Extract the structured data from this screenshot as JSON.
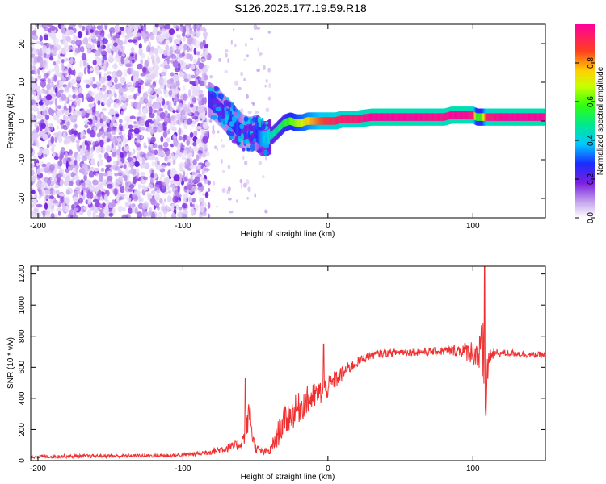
{
  "title": "S126.2025.177.19.59.R18",
  "chart_data": [
    {
      "type": "heatmap",
      "xlabel": "Height of straight line (km)",
      "ylabel": "Frequency (Hz)",
      "xlim": [
        -205,
        150
      ],
      "ylim": [
        -25,
        25
      ],
      "xticks": [
        -200,
        -100,
        0,
        100
      ],
      "yticks": [
        -20,
        -10,
        0,
        10,
        20
      ],
      "colorbar": {
        "label": "Normalized spectral amplitude",
        "range": [
          0,
          1
        ],
        "ticks": [
          0.0,
          0.2,
          0.4,
          0.6,
          0.8
        ],
        "tick_labels": [
          "0.0",
          "0.2",
          "0.4",
          "0.6",
          "0.8"
        ]
      },
      "noise_region_x": [
        -205,
        -82
      ],
      "ridge": {
        "x": [
          -82,
          -78,
          -74,
          -70,
          -66,
          -62,
          -58,
          -54,
          -50,
          -46,
          -42,
          -38,
          -34,
          -30,
          -26,
          -22,
          -18,
          -14,
          -10,
          -5,
          0,
          5,
          10,
          15,
          20,
          30,
          40,
          50,
          60,
          70,
          80,
          85,
          90,
          95,
          100,
          103,
          106,
          110,
          120,
          130,
          140,
          150
        ],
        "freq": [
          5.5,
          4.5,
          3,
          1.5,
          0,
          -2,
          -3,
          -3.5,
          -3,
          -4.5,
          -4.5,
          -3.5,
          -2,
          -0.5,
          0,
          -0.5,
          -0.5,
          0,
          0,
          0,
          0,
          0,
          0.5,
          0.5,
          0.5,
          1,
          1,
          1,
          1,
          1,
          1,
          1.5,
          1.5,
          1.5,
          1.5,
          1,
          1,
          1,
          1,
          1,
          1,
          1
        ],
        "amplitude": [
          0.25,
          0.2,
          0.2,
          0.25,
          0.25,
          0.3,
          0.2,
          0.2,
          0.25,
          0.35,
          0.4,
          0.45,
          0.5,
          0.55,
          0.6,
          0.65,
          0.7,
          0.75,
          0.8,
          0.85,
          0.9,
          0.92,
          0.95,
          0.95,
          0.95,
          1,
          1,
          1,
          1,
          0.98,
          0.98,
          1,
          1,
          1,
          0.95,
          0.55,
          0.6,
          0.95,
          1,
          1,
          1,
          1
        ]
      }
    },
    {
      "type": "line",
      "xlabel": "Height of straight line (km)",
      "ylabel": "SNR (10 * v/v)",
      "xlim": [
        -205,
        150
      ],
      "ylim": [
        0,
        1250
      ],
      "xticks": [
        -200,
        -100,
        0,
        100
      ],
      "yticks": [
        0,
        200,
        400,
        600,
        800,
        1000,
        1200
      ],
      "color": "#f03030",
      "envelope": {
        "x": [
          -205,
          -180,
          -150,
          -120,
          -100,
          -90,
          -80,
          -70,
          -65,
          -60,
          -58,
          -56,
          -54,
          -52,
          -50,
          -45,
          -40,
          -35,
          -30,
          -25,
          -20,
          -15,
          -10,
          -5,
          0,
          5,
          10,
          15,
          20,
          25,
          30,
          40,
          50,
          60,
          70,
          80,
          90,
          100,
          104,
          106,
          107,
          108,
          109,
          110,
          112,
          115,
          120,
          130,
          140,
          150
        ],
        "base": [
          25,
          28,
          30,
          32,
          35,
          45,
          60,
          80,
          90,
          110,
          150,
          220,
          320,
          160,
          80,
          55,
          60,
          160,
          260,
          300,
          340,
          380,
          410,
          440,
          470,
          520,
          560,
          600,
          630,
          660,
          680,
          690,
          700,
          700,
          700,
          705,
          710,
          700,
          680,
          640,
          600,
          560,
          520,
          600,
          680,
          690,
          690,
          690,
          680,
          680
        ],
        "noise": [
          12,
          12,
          12,
          12,
          14,
          18,
          22,
          28,
          30,
          40,
          60,
          80,
          90,
          60,
          30,
          20,
          30,
          80,
          100,
          100,
          100,
          100,
          90,
          80,
          70,
          60,
          50,
          40,
          30,
          30,
          28,
          25,
          25,
          25,
          25,
          28,
          40,
          80,
          150,
          250,
          300,
          300,
          250,
          150,
          60,
          30,
          25,
          22,
          20,
          20
        ]
      },
      "peaks": [
        {
          "x": -57,
          "y": 530
        },
        {
          "x": 108,
          "y": 1250
        },
        {
          "x": 109,
          "y": 290
        },
        {
          "x": -3,
          "y": 750
        }
      ]
    }
  ]
}
